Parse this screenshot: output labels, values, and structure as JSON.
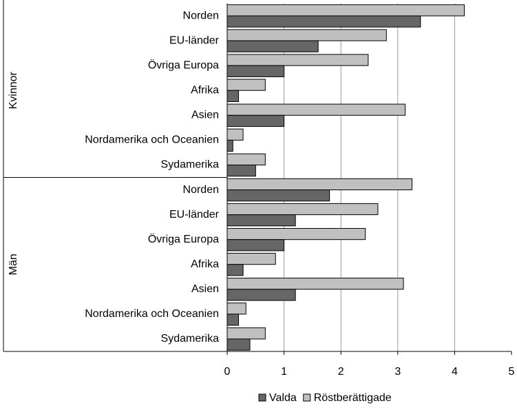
{
  "chart_data": {
    "type": "bar",
    "orientation": "horizontal",
    "groups": [
      "Kvinnor",
      "Män"
    ],
    "categories": [
      "Norden",
      "EU-länder",
      "Övriga Europa",
      "Afrika",
      "Asien",
      "Nordamerika och Oceanien",
      "Sydamerika",
      "Norden",
      "EU-länder",
      "Övriga Europa",
      "Afrika",
      "Asien",
      "Nordamerika och Oceanien",
      "Sydamerika"
    ],
    "series": [
      {
        "name": "Valda",
        "color": "#666666",
        "values": [
          3.4,
          1.6,
          1.0,
          0.2,
          1.0,
          0.1,
          0.5,
          1.8,
          1.2,
          1.0,
          0.28,
          1.2,
          0.2,
          0.4
        ]
      },
      {
        "name": "Röstberättigade",
        "color": "#c0c0c0",
        "values": [
          4.17,
          2.8,
          2.48,
          0.67,
          3.13,
          0.28,
          0.67,
          3.25,
          2.65,
          2.43,
          0.85,
          3.1,
          0.33,
          0.67
        ]
      }
    ],
    "xlim": [
      0,
      5
    ],
    "xticks": [
      0,
      1,
      2,
      3,
      4,
      5
    ],
    "grid": true,
    "legend": "bottom"
  }
}
